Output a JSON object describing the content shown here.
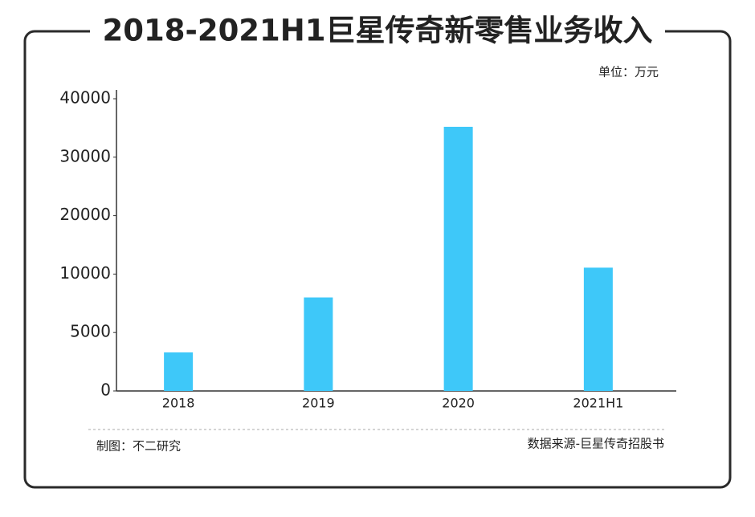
{
  "chart_data": {
    "type": "bar",
    "title": "2018-2021H1巨星传奇新零售业务收入",
    "unit_note": "单位：万元",
    "categories": [
      "2018",
      "2019",
      "2020",
      "2021H1"
    ],
    "values": [
      3300,
      8000,
      35200,
      11100
    ],
    "color": "#3ec8f9",
    "ylim": [
      0,
      40000
    ],
    "yticks": [
      0,
      5000,
      10000,
      20000,
      30000,
      40000
    ],
    "ticks_evenly_spaced": true,
    "credit": "制图：不二研究",
    "source": "数据来源-巨星传奇招股书"
  }
}
